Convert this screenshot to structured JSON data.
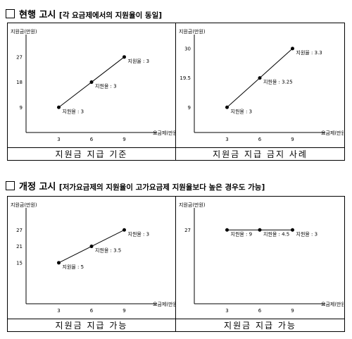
{
  "sections": [
    {
      "title": "현행 고시",
      "subtitle": "[각 요금제에서의 지원율이 동일]"
    },
    {
      "title": "개정 고시",
      "subtitle": "[저가요금제의 지원율이 고가요금제 지원율보다 높은 경우도 가능]"
    }
  ],
  "chart_data": [
    {
      "type": "line",
      "ylabel": "지원금(만원)",
      "xlabel": "요금제(만원)",
      "x": [
        3,
        6,
        9
      ],
      "y": [
        9,
        18,
        27
      ],
      "yticks": [
        9,
        18,
        27
      ],
      "xticks": [
        3,
        6,
        9
      ],
      "ylim": [
        0,
        33
      ],
      "xlim": [
        0,
        12
      ],
      "point_labels": [
        "지원율 : 3",
        "지원율 : 3",
        "지원율 : 3"
      ],
      "caption": "지원금 지급 기준"
    },
    {
      "type": "line",
      "ylabel": "지원금(만원)",
      "xlabel": "요금제(만원)",
      "x": [
        3,
        6,
        9
      ],
      "y": [
        9,
        19.5,
        30
      ],
      "yticks": [
        9,
        19.5,
        30
      ],
      "xticks": [
        3,
        6,
        9
      ],
      "ylim": [
        0,
        33
      ],
      "xlim": [
        0,
        12
      ],
      "point_labels": [
        "지원율 : 3",
        "지원율 : 3.25",
        "지원율 : 3.3"
      ],
      "caption": "지원금 지급 금지 사례"
    },
    {
      "type": "line",
      "ylabel": "지원금(만원)",
      "xlabel": "요금제(만원)",
      "x": [
        3,
        6,
        9
      ],
      "y": [
        15,
        21,
        27
      ],
      "yticks": [
        15,
        21,
        27
      ],
      "xticks": [
        3,
        6,
        9
      ],
      "ylim": [
        0,
        33
      ],
      "xlim": [
        0,
        12
      ],
      "point_labels": [
        "지원율 : 5",
        "지원율 : 3.5",
        "지원율 : 3"
      ],
      "caption": "지원금 지급 가능"
    },
    {
      "type": "line",
      "ylabel": "지원금(만원)",
      "xlabel": "요금제(만원)",
      "x": [
        3,
        6,
        9
      ],
      "y": [
        27,
        27,
        27
      ],
      "yticks": [
        27
      ],
      "xticks": [
        3,
        6,
        9
      ],
      "ylim": [
        0,
        33
      ],
      "xlim": [
        0,
        12
      ],
      "point_labels": [
        "지원율 : 9",
        "지원율 : 4.5",
        "지원율 : 3"
      ],
      "caption": "지원금 지급 가능"
    }
  ]
}
